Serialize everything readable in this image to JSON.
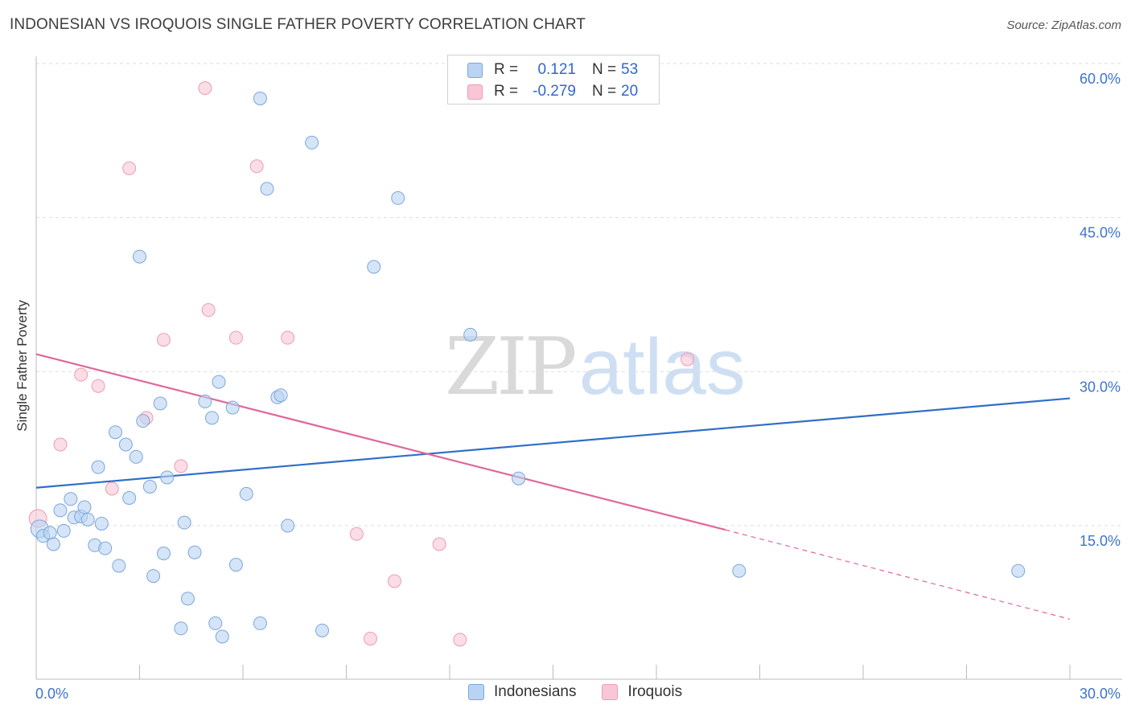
{
  "header": {
    "title": "INDONESIAN VS IROQUOIS SINGLE FATHER POVERTY CORRELATION CHART",
    "source": "Source: ZipAtlas.com"
  },
  "watermark": {
    "zip": "ZIP",
    "atlas": "atlas"
  },
  "stats_legend": {
    "indonesians": {
      "r_label": "R =",
      "r_value": "0.121",
      "n_label": "N =",
      "n_value": "53"
    },
    "iroquois": {
      "r_label": "R =",
      "r_value": "-0.279",
      "n_label": "N =",
      "n_value": "20"
    }
  },
  "colors": {
    "indonesians_fill": "#b9d3f2",
    "indonesians_stroke": "#7ba6dc",
    "indonesians_line": "#2f6fc8",
    "iroquois_fill": "#f8c6d5",
    "iroquois_stroke": "#eb9db5",
    "iroquois_line": "#e0679a",
    "tick_label": "#3f74c9",
    "grid": "#dddddd"
  },
  "chart_data": {
    "type": "scatter",
    "title": "INDONESIAN VS IROQUOIS SINGLE FATHER POVERTY CORRELATION CHART",
    "xlabel": "",
    "ylabel": "Single Father Poverty",
    "xlim": [
      0,
      30
    ],
    "ylim": [
      0,
      62
    ],
    "x_tick_labels": [
      "0.0%",
      "30.0%"
    ],
    "y_ticks": [
      15,
      30,
      45,
      60
    ],
    "y_tick_labels": [
      "15.0%",
      "30.0%",
      "45.0%",
      "60.0%"
    ],
    "grid": true,
    "legend_position": "bottom-center",
    "series": [
      {
        "name": "Indonesians",
        "color": "#b9d3f2",
        "points": [
          {
            "x": 0.1,
            "y": 14.7
          },
          {
            "x": 0.2,
            "y": 14.0
          },
          {
            "x": 0.4,
            "y": 14.3
          },
          {
            "x": 0.5,
            "y": 13.2
          },
          {
            "x": 0.7,
            "y": 16.5
          },
          {
            "x": 0.8,
            "y": 14.5
          },
          {
            "x": 1.0,
            "y": 17.6
          },
          {
            "x": 1.1,
            "y": 15.8
          },
          {
            "x": 1.3,
            "y": 15.9
          },
          {
            "x": 1.4,
            "y": 16.8
          },
          {
            "x": 1.5,
            "y": 15.6
          },
          {
            "x": 1.7,
            "y": 13.1
          },
          {
            "x": 1.8,
            "y": 20.7
          },
          {
            "x": 1.9,
            "y": 15.2
          },
          {
            "x": 2.0,
            "y": 12.8
          },
          {
            "x": 2.3,
            "y": 24.1
          },
          {
            "x": 2.4,
            "y": 11.1
          },
          {
            "x": 2.6,
            "y": 22.9
          },
          {
            "x": 2.7,
            "y": 17.7
          },
          {
            "x": 2.9,
            "y": 21.7
          },
          {
            "x": 3.0,
            "y": 41.2
          },
          {
            "x": 3.1,
            "y": 25.2
          },
          {
            "x": 3.3,
            "y": 18.8
          },
          {
            "x": 3.4,
            "y": 10.1
          },
          {
            "x": 3.6,
            "y": 26.9
          },
          {
            "x": 3.7,
            "y": 12.3
          },
          {
            "x": 3.8,
            "y": 19.7
          },
          {
            "x": 4.2,
            "y": 5.0
          },
          {
            "x": 4.3,
            "y": 15.3
          },
          {
            "x": 4.4,
            "y": 7.9
          },
          {
            "x": 4.6,
            "y": 12.4
          },
          {
            "x": 4.9,
            "y": 27.1
          },
          {
            "x": 5.1,
            "y": 25.5
          },
          {
            "x": 5.2,
            "y": 5.5
          },
          {
            "x": 5.3,
            "y": 29.0
          },
          {
            "x": 5.4,
            "y": 4.2
          },
          {
            "x": 5.7,
            "y": 26.5
          },
          {
            "x": 5.8,
            "y": 11.2
          },
          {
            "x": 6.1,
            "y": 18.1
          },
          {
            "x": 6.5,
            "y": 56.6
          },
          {
            "x": 6.5,
            "y": 5.5
          },
          {
            "x": 6.7,
            "y": 47.8
          },
          {
            "x": 7.0,
            "y": 27.5
          },
          {
            "x": 7.1,
            "y": 27.7
          },
          {
            "x": 7.3,
            "y": 15.0
          },
          {
            "x": 8.0,
            "y": 52.3
          },
          {
            "x": 8.3,
            "y": 4.8
          },
          {
            "x": 9.8,
            "y": 40.2
          },
          {
            "x": 10.5,
            "y": 46.9
          },
          {
            "x": 12.6,
            "y": 33.6
          },
          {
            "x": 14.0,
            "y": 19.6
          },
          {
            "x": 20.4,
            "y": 10.6
          },
          {
            "x": 28.5,
            "y": 10.6
          }
        ],
        "trend": {
          "x": [
            0,
            30
          ],
          "y": [
            18.7,
            27.4
          ]
        }
      },
      {
        "name": "Iroquois",
        "color": "#f8c6d5",
        "points": [
          {
            "x": 0.05,
            "y": 15.7
          },
          {
            "x": 0.7,
            "y": 22.9
          },
          {
            "x": 1.3,
            "y": 29.7
          },
          {
            "x": 1.8,
            "y": 28.6
          },
          {
            "x": 2.2,
            "y": 18.6
          },
          {
            "x": 2.7,
            "y": 49.8
          },
          {
            "x": 3.2,
            "y": 25.5
          },
          {
            "x": 3.7,
            "y": 33.1
          },
          {
            "x": 4.2,
            "y": 20.8
          },
          {
            "x": 4.9,
            "y": 57.6
          },
          {
            "x": 5.0,
            "y": 36.0
          },
          {
            "x": 5.8,
            "y": 33.3
          },
          {
            "x": 6.4,
            "y": 50.0
          },
          {
            "x": 7.3,
            "y": 33.3
          },
          {
            "x": 9.3,
            "y": 14.2
          },
          {
            "x": 9.7,
            "y": 4.0
          },
          {
            "x": 10.4,
            "y": 9.6
          },
          {
            "x": 11.7,
            "y": 13.2
          },
          {
            "x": 12.3,
            "y": 3.9
          },
          {
            "x": 18.9,
            "y": 31.2
          }
        ],
        "trend": {
          "x": [
            0,
            20
          ],
          "y": [
            31.7,
            14.6
          ]
        },
        "trend_dashed": {
          "x": [
            20,
            30
          ],
          "y": [
            14.6,
            5.9
          ]
        }
      }
    ]
  },
  "bottom_legend": {
    "indonesians_label": "Indonesians",
    "iroquois_label": "Iroquois"
  }
}
